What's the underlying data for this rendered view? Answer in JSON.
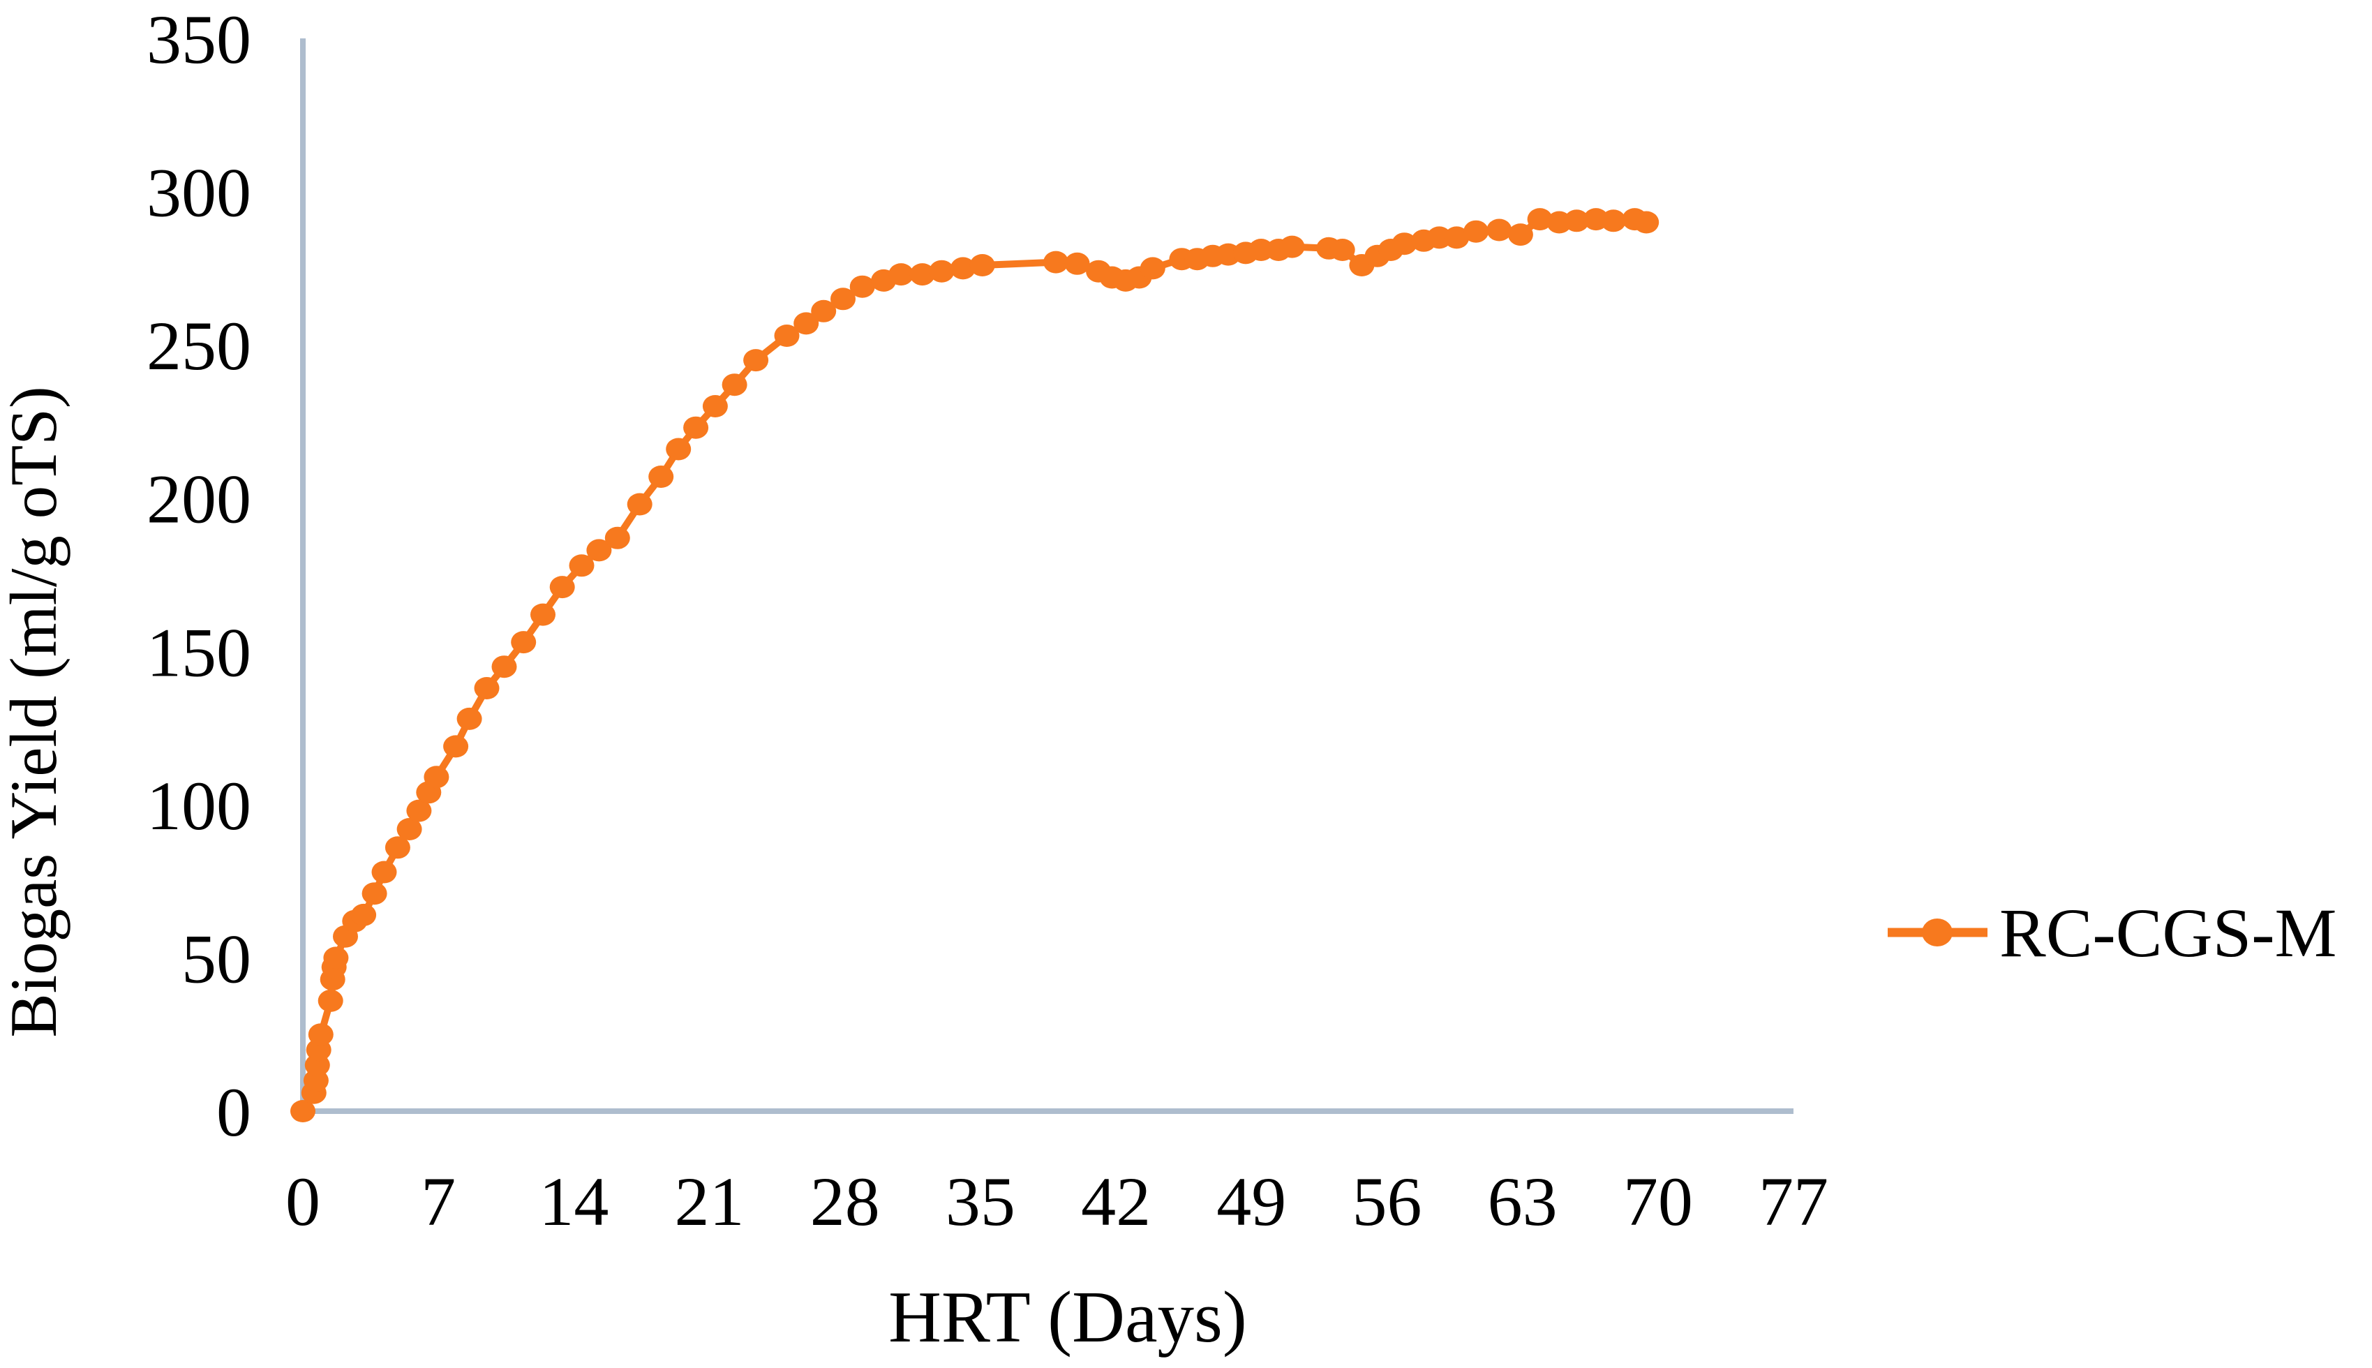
{
  "chart_data": {
    "type": "line",
    "title": "",
    "xlabel": "HRT (Days)",
    "ylabel": "Biogas Yield (ml/g oTS)",
    "xlim": [
      0,
      77
    ],
    "ylim": [
      0,
      350
    ],
    "x_ticks": [
      0,
      7,
      14,
      21,
      28,
      35,
      42,
      49,
      56,
      63,
      70,
      77
    ],
    "y_ticks": [
      0,
      50,
      100,
      150,
      200,
      250,
      300,
      350
    ],
    "grid": false,
    "legend_position": "right-middle",
    "series": [
      {
        "name": "RC-CGS-M",
        "color": "#F7791E",
        "marker": "circle",
        "points": [
          [
            0,
            0
          ],
          [
            0.57,
            6
          ],
          [
            0.68,
            10
          ],
          [
            0.75,
            15
          ],
          [
            0.82,
            20
          ],
          [
            0.93,
            25
          ],
          [
            1.43,
            36
          ],
          [
            1.54,
            43
          ],
          [
            1.61,
            47
          ],
          [
            1.71,
            50
          ],
          [
            2.2,
            57
          ],
          [
            2.68,
            62
          ],
          [
            3.14,
            64
          ],
          [
            3.7,
            71
          ],
          [
            4.2,
            78
          ],
          [
            4.9,
            86
          ],
          [
            5.5,
            92
          ],
          [
            6.0,
            98
          ],
          [
            6.5,
            104
          ],
          [
            6.9,
            109
          ],
          [
            7.9,
            119
          ],
          [
            8.6,
            128
          ],
          [
            9.5,
            138
          ],
          [
            10.4,
            145
          ],
          [
            11.4,
            153
          ],
          [
            12.4,
            162
          ],
          [
            13.4,
            171
          ],
          [
            14.4,
            178
          ],
          [
            15.3,
            183
          ],
          [
            16.25,
            187
          ],
          [
            17.4,
            198
          ],
          [
            18.5,
            207
          ],
          [
            19.4,
            216
          ],
          [
            20.3,
            223
          ],
          [
            21.3,
            230
          ],
          [
            22.3,
            237
          ],
          [
            23.4,
            245
          ],
          [
            25.0,
            253
          ],
          [
            26.0,
            257
          ],
          [
            26.9,
            261
          ],
          [
            27.9,
            265
          ],
          [
            28.9,
            269
          ],
          [
            30.0,
            271
          ],
          [
            30.9,
            273
          ],
          [
            32.0,
            273
          ],
          [
            33.0,
            274
          ],
          [
            34.1,
            275
          ],
          [
            35.1,
            276
          ],
          [
            38.9,
            277
          ],
          [
            40.0,
            276.5
          ],
          [
            41.1,
            274
          ],
          [
            41.8,
            272
          ],
          [
            42.5,
            271
          ],
          [
            43.2,
            272
          ],
          [
            43.9,
            275
          ],
          [
            45.4,
            278
          ],
          [
            46.2,
            278
          ],
          [
            47.0,
            279
          ],
          [
            47.8,
            279.5
          ],
          [
            48.7,
            280
          ],
          [
            49.5,
            281
          ],
          [
            50.4,
            281
          ],
          [
            51.1,
            282
          ],
          [
            53.0,
            281.5
          ],
          [
            53.7,
            281
          ],
          [
            54.7,
            276
          ],
          [
            55.5,
            279
          ],
          [
            56.2,
            281
          ],
          [
            56.9,
            283
          ],
          [
            57.9,
            284
          ],
          [
            58.7,
            285
          ],
          [
            59.6,
            285
          ],
          [
            60.6,
            287
          ],
          [
            61.8,
            287.5
          ],
          [
            62.9,
            286
          ],
          [
            63.9,
            291
          ],
          [
            64.9,
            290
          ],
          [
            65.8,
            290.5
          ],
          [
            66.8,
            291
          ],
          [
            67.7,
            290.5
          ],
          [
            68.8,
            291
          ],
          [
            69.4,
            290
          ]
        ]
      }
    ]
  },
  "colors": {
    "background": "#FFFFFF",
    "axis_line": "#AEBDCE",
    "text": "#000000",
    "series_orange": "#F7791E"
  }
}
